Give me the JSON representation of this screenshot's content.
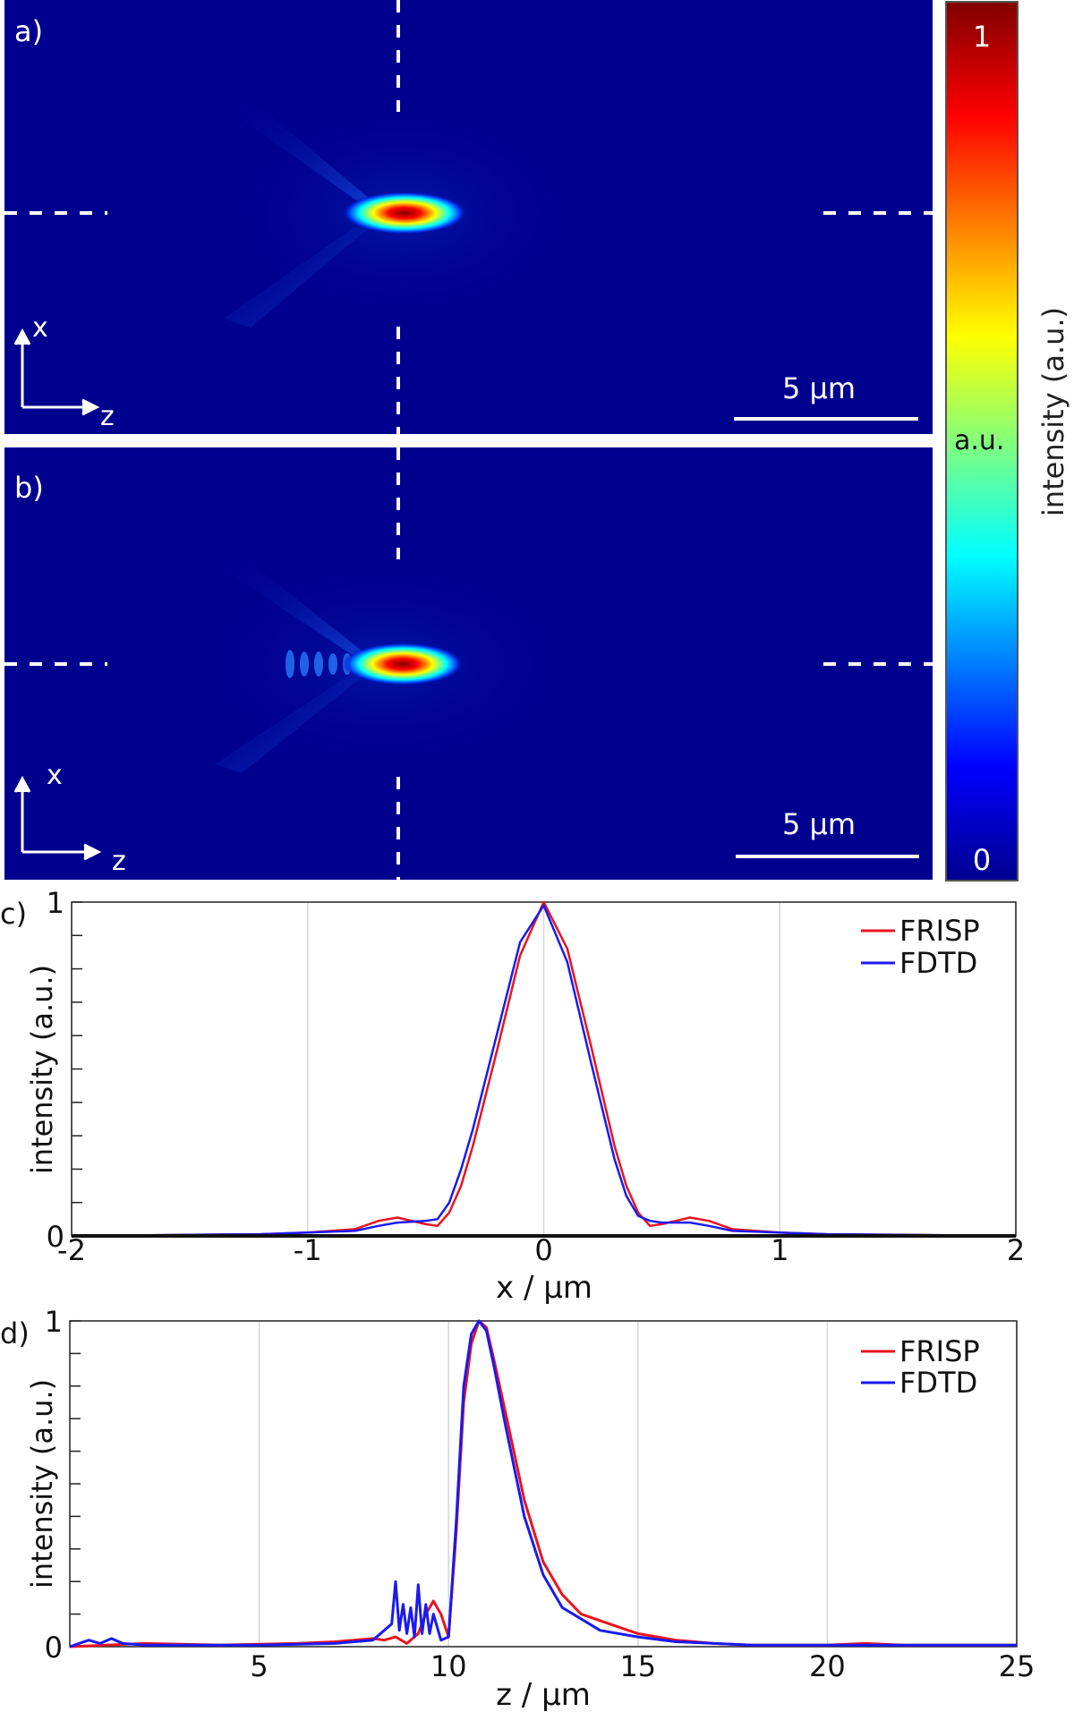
{
  "panels": {
    "a": {
      "label": "a)",
      "axis_x": "x",
      "axis_z": "z",
      "scalebar": "5 µm",
      "intensity_map": {
        "hotspot_z_um": 11,
        "hotspot_x_um": 0,
        "peak": 1
      }
    },
    "b": {
      "label": "b)",
      "axis_x": "x",
      "axis_z": "z",
      "scalebar": "5 µm",
      "intensity_map": {
        "hotspot_z_um": 11,
        "hotspot_x_um": 0,
        "peak": 1
      }
    }
  },
  "colorbar": {
    "max_label": "1",
    "mid_label": "a.u.",
    "min_label": "0",
    "title": "intensity (a.u.)",
    "colors": [
      "#00008f",
      "#0000ff",
      "#00ffff",
      "#ffff00",
      "#ff0000",
      "#800000"
    ]
  },
  "colors": {
    "frisp": "#e8141e",
    "fdtd": "#1a1aee",
    "grid": "#d6d6d6",
    "field_bg": "#00008f"
  },
  "chart_data": [
    {
      "type": "line",
      "label": "c)",
      "xlabel": "x / µm",
      "ylabel": "intensity (a.u.)",
      "xlim": [
        -2,
        2
      ],
      "ylim": [
        0,
        1
      ],
      "xticks": [
        -2,
        -1,
        0,
        1,
        2
      ],
      "yticks": [
        0,
        1
      ],
      "legend_position": "top-right",
      "series": [
        {
          "name": "FRISP",
          "color": "#e8141e",
          "x": [
            -2,
            -1.2,
            -1,
            -0.8,
            -0.7,
            -0.62,
            -0.5,
            -0.45,
            -0.4,
            -0.35,
            -0.3,
            -0.2,
            -0.1,
            0,
            0.1,
            0.2,
            0.3,
            0.35,
            0.4,
            0.45,
            0.5,
            0.62,
            0.7,
            0.8,
            1,
            1.2,
            2
          ],
          "y": [
            0,
            0.005,
            0.01,
            0.02,
            0.045,
            0.055,
            0.035,
            0.03,
            0.07,
            0.15,
            0.27,
            0.55,
            0.84,
            1,
            0.86,
            0.57,
            0.27,
            0.15,
            0.07,
            0.03,
            0.035,
            0.055,
            0.045,
            0.02,
            0.01,
            0.005,
            0
          ]
        },
        {
          "name": "FDTD",
          "color": "#1a1aee",
          "x": [
            -2,
            -1.2,
            -1,
            -0.8,
            -0.7,
            -0.62,
            -0.5,
            -0.45,
            -0.4,
            -0.35,
            -0.3,
            -0.2,
            -0.1,
            0,
            0.1,
            0.2,
            0.3,
            0.35,
            0.4,
            0.45,
            0.5,
            0.62,
            0.7,
            0.8,
            1,
            1.2,
            2
          ],
          "y": [
            0,
            0.005,
            0.01,
            0.015,
            0.03,
            0.04,
            0.045,
            0.05,
            0.1,
            0.2,
            0.32,
            0.6,
            0.88,
            0.99,
            0.82,
            0.52,
            0.23,
            0.12,
            0.06,
            0.045,
            0.04,
            0.04,
            0.03,
            0.015,
            0.01,
            0.005,
            0
          ]
        }
      ]
    },
    {
      "type": "line",
      "label": "d)",
      "xlabel": "z / µm",
      "ylabel": "intensity (a.u.)",
      "xlim": [
        0,
        25
      ],
      "ylim": [
        0,
        1
      ],
      "xticks": [
        5,
        10,
        15,
        20,
        25
      ],
      "yticks": [
        0,
        1
      ],
      "legend_position": "top-right",
      "series": [
        {
          "name": "FRISP",
          "color": "#e8141e",
          "x": [
            0,
            2,
            4,
            6,
            7,
            7.5,
            8,
            8.3,
            8.6,
            8.9,
            9.2,
            9.4,
            9.6,
            9.8,
            10,
            10.2,
            10.4,
            10.6,
            10.8,
            11,
            11.2,
            11.5,
            12,
            12.5,
            13,
            13.5,
            14,
            14.5,
            15,
            16,
            17,
            18,
            20,
            21,
            22,
            25
          ],
          "y": [
            0,
            0.01,
            0.005,
            0.01,
            0.015,
            0.02,
            0.025,
            0.02,
            0.03,
            0.01,
            0.04,
            0.1,
            0.14,
            0.1,
            0.03,
            0.35,
            0.75,
            0.93,
            1,
            0.98,
            0.88,
            0.72,
            0.45,
            0.26,
            0.16,
            0.1,
            0.08,
            0.06,
            0.04,
            0.02,
            0.01,
            0.005,
            0.005,
            0.01,
            0.005,
            0.005
          ]
        },
        {
          "name": "FDTD",
          "color": "#1a1aee",
          "x": [
            0,
            0.5,
            0.8,
            1.1,
            1.4,
            2,
            3,
            5,
            7,
            8,
            8.3,
            8.5,
            8.6,
            8.7,
            8.8,
            8.9,
            9.0,
            9.1,
            9.2,
            9.3,
            9.4,
            9.5,
            9.6,
            9.7,
            9.8,
            10,
            10.2,
            10.4,
            10.6,
            10.8,
            11,
            11.2,
            11.5,
            12,
            12.5,
            13,
            14,
            15,
            16,
            18,
            20,
            22,
            25
          ],
          "y": [
            0,
            0.02,
            0.01,
            0.025,
            0.01,
            0.005,
            0.005,
            0.005,
            0.01,
            0.02,
            0.05,
            0.07,
            0.2,
            0.05,
            0.13,
            0.04,
            0.12,
            0.03,
            0.19,
            0.04,
            0.13,
            0.04,
            0.1,
            0.06,
            0.02,
            0.03,
            0.38,
            0.8,
            0.96,
            1,
            0.97,
            0.86,
            0.68,
            0.4,
            0.22,
            0.12,
            0.05,
            0.03,
            0.015,
            0.005,
            0.005,
            0.005,
            0.005
          ]
        }
      ]
    }
  ]
}
